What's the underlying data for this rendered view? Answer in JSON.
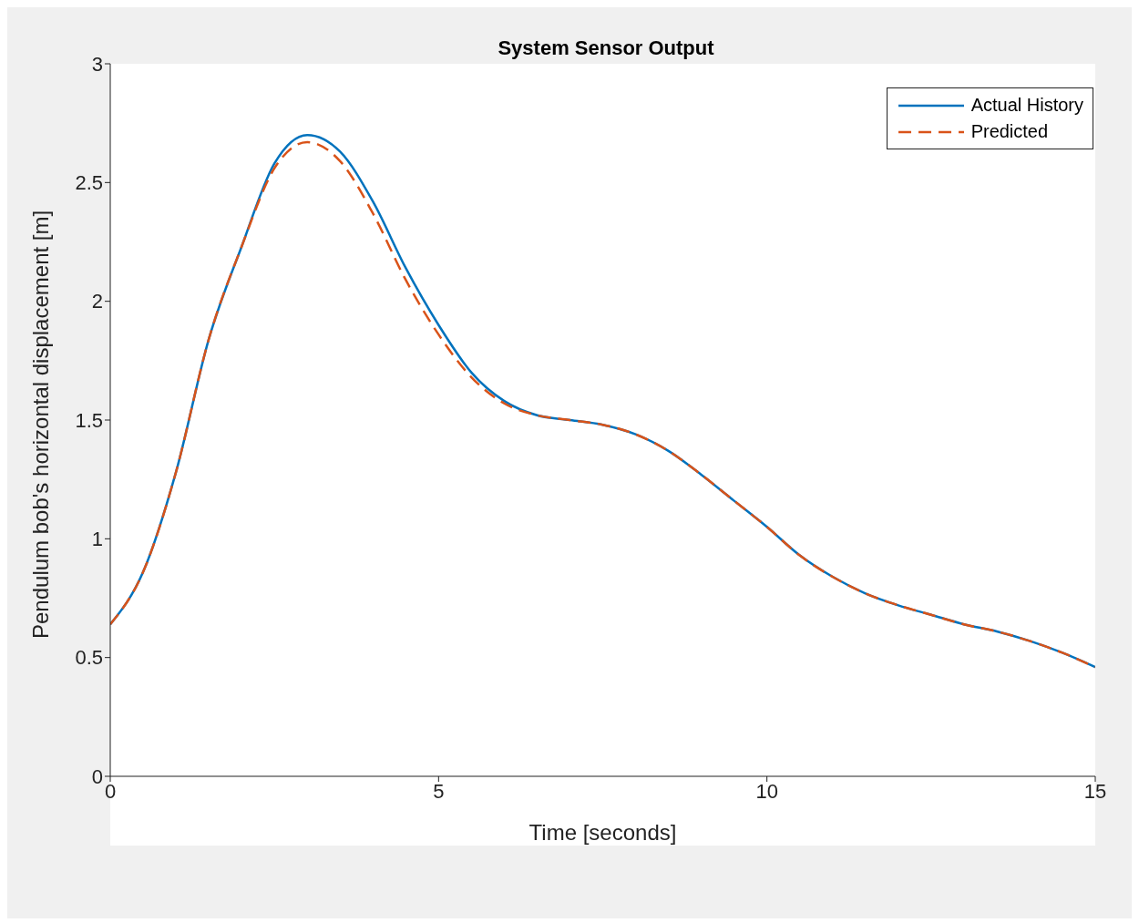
{
  "chart_data": {
    "type": "line",
    "title": "System Sensor Output",
    "xlabel": "Time [seconds]",
    "ylabel": "Pendulum bob's horizontal displacement [m]",
    "x": [
      0,
      0.5,
      1,
      1.5,
      2,
      2.5,
      3,
      3.5,
      4,
      4.5,
      5,
      5.5,
      6,
      6.5,
      7,
      7.5,
      8,
      8.5,
      9,
      9.5,
      10,
      10.5,
      11,
      11.5,
      12,
      12.5,
      13,
      13.5,
      14,
      14.5,
      15
    ],
    "series": [
      {
        "name": "Actual History",
        "color": "#0072bd",
        "line_style": "solid",
        "values": [
          0.64,
          0.86,
          1.28,
          1.84,
          2.23,
          2.58,
          2.7,
          2.63,
          2.42,
          2.14,
          1.9,
          1.7,
          1.58,
          1.52,
          1.5,
          1.48,
          1.44,
          1.37,
          1.27,
          1.16,
          1.05,
          0.93,
          0.84,
          0.77,
          0.72,
          0.68,
          0.64,
          0.61,
          0.57,
          0.52,
          0.46
        ]
      },
      {
        "name": "Predicted",
        "color": "#d95319",
        "line_style": "dashed",
        "values": [
          0.64,
          0.86,
          1.28,
          1.84,
          2.23,
          2.56,
          2.67,
          2.59,
          2.37,
          2.09,
          1.86,
          1.68,
          1.57,
          1.52,
          1.5,
          1.48,
          1.44,
          1.37,
          1.27,
          1.16,
          1.05,
          0.93,
          0.84,
          0.77,
          0.72,
          0.68,
          0.64,
          0.61,
          0.57,
          0.52,
          0.46
        ]
      }
    ],
    "xlim": [
      0,
      15
    ],
    "xticks": [
      0,
      5,
      10,
      15
    ],
    "ylim": [
      0,
      3
    ],
    "yticks": [
      0,
      0.5,
      1,
      1.5,
      2,
      2.5,
      3
    ],
    "legend": "top right"
  }
}
